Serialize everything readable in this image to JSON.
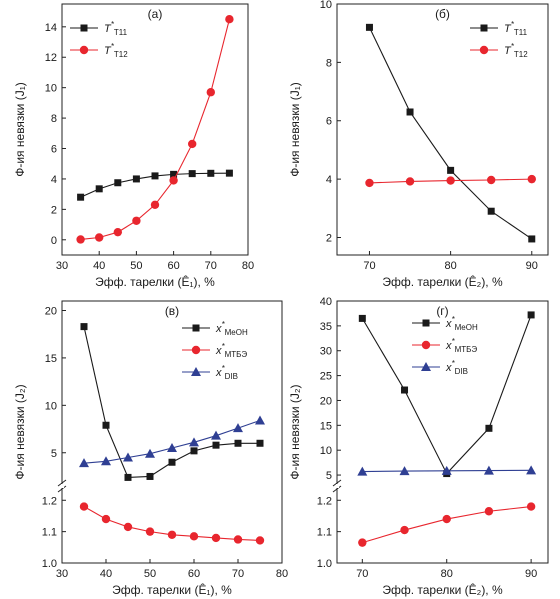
{
  "colors": {
    "black": "#1a1a1a",
    "red": "#e8262e",
    "blue": "#2f3f93"
  },
  "chart_data": [
    {
      "id": "a",
      "panel_label": "(а)",
      "type": "line",
      "xlabel": "Эфф. тарелки (Ê₁), %",
      "ylabel": "Ф-ия невязки (J₁)",
      "xlim": [
        30,
        80
      ],
      "ylim": [
        -1,
        15.5
      ],
      "xticks": [
        30,
        40,
        50,
        60,
        70,
        80
      ],
      "yticks": [
        0,
        2,
        4,
        6,
        8,
        10,
        12,
        14
      ],
      "legend_position": "top-left",
      "series": [
        {
          "name": "T*_T11",
          "legend_main": "T",
          "legend_sup": "*",
          "legend_sub": "T11",
          "color": "#1a1a1a",
          "marker": "square",
          "x": [
            35,
            40,
            45,
            50,
            55,
            60,
            65,
            70,
            75
          ],
          "values": [
            2.8,
            3.35,
            3.75,
            4.0,
            4.2,
            4.3,
            4.35,
            4.37,
            4.38
          ]
        },
        {
          "name": "T*_T12",
          "legend_main": "T",
          "legend_sup": "*",
          "legend_sub": "T12",
          "color": "#e8262e",
          "marker": "circle",
          "x": [
            35,
            40,
            45,
            50,
            55,
            60,
            65,
            70,
            75
          ],
          "values": [
            0.02,
            0.15,
            0.5,
            1.25,
            2.3,
            3.9,
            6.3,
            9.7,
            14.5
          ]
        }
      ]
    },
    {
      "id": "b",
      "panel_label": "(б)",
      "type": "line",
      "xlabel": "Эфф. тарелки (Ê₂), %",
      "ylabel": "Ф-ия невязки (J₁)",
      "xlim": [
        66,
        92
      ],
      "ylim": [
        1.4,
        10
      ],
      "xticks": [
        70,
        80,
        90
      ],
      "yticks": [
        2,
        4,
        6,
        8,
        10
      ],
      "legend_position": "top-right",
      "series": [
        {
          "name": "T*_T11",
          "legend_main": "T",
          "legend_sup": "*",
          "legend_sub": "T11",
          "color": "#1a1a1a",
          "marker": "square",
          "x": [
            70,
            75,
            80,
            85,
            90
          ],
          "values": [
            9.2,
            6.3,
            4.3,
            2.9,
            1.95
          ]
        },
        {
          "name": "T*_T12",
          "legend_main": "T",
          "legend_sup": "*",
          "legend_sub": "T12",
          "color": "#e8262e",
          "marker": "circle",
          "x": [
            70,
            75,
            80,
            85,
            90
          ],
          "values": [
            3.87,
            3.92,
            3.95,
            3.97,
            4.0
          ]
        }
      ]
    },
    {
      "id": "c",
      "panel_label": "(в)",
      "type": "line",
      "broken_y_axis": true,
      "xlabel": "Эфф. тарелки (Ê₁), %",
      "ylabel": "Ф-ия невязки (J₂)",
      "xlim": [
        30,
        80
      ],
      "ylim_lower": [
        1.0,
        1.22
      ],
      "ylim_upper": [
        1.6,
        21
      ],
      "xticks": [
        30,
        40,
        50,
        60,
        70,
        80
      ],
      "yticks_lower": [
        1.0,
        1.1,
        1.2
      ],
      "yticks_upper": [
        5,
        10,
        15,
        20
      ],
      "legend_position": "top-right",
      "series": [
        {
          "name": "x*_MeOH",
          "legend_main": "x",
          "legend_sup": "*",
          "legend_sub": "MeOH",
          "color": "#1a1a1a",
          "marker": "square",
          "x": [
            35,
            40,
            45,
            50,
            55,
            60,
            65,
            70,
            75
          ],
          "values": [
            18.3,
            7.9,
            2.4,
            2.5,
            4.0,
            5.2,
            5.8,
            6.0,
            6.0
          ]
        },
        {
          "name": "x*_MTBE",
          "legend_main": "x",
          "legend_sup": "*",
          "legend_sub": "MTБЭ",
          "color": "#e8262e",
          "marker": "circle",
          "x": [
            35,
            40,
            45,
            50,
            55,
            60,
            65,
            70,
            75
          ],
          "values": [
            1.18,
            1.14,
            1.115,
            1.1,
            1.09,
            1.085,
            1.08,
            1.075,
            1.072
          ]
        },
        {
          "name": "x*_DIB",
          "legend_main": "x",
          "legend_sup": "*",
          "legend_sub": "DIB",
          "color": "#2f3f93",
          "marker": "triangle",
          "x": [
            35,
            40,
            45,
            50,
            55,
            60,
            65,
            70,
            75
          ],
          "values": [
            3.9,
            4.1,
            4.5,
            4.9,
            5.5,
            6.1,
            6.8,
            7.6,
            8.4
          ]
        }
      ]
    },
    {
      "id": "d",
      "panel_label": "(г)",
      "type": "line",
      "broken_y_axis": true,
      "xlabel": "Эфф. тарелки (Ê₂), %",
      "ylabel": "Ф-ия невязки (J₂)",
      "xlim": [
        67,
        92
      ],
      "ylim_lower": [
        1.0,
        1.22
      ],
      "ylim_upper": [
        3,
        40
      ],
      "xticks": [
        70,
        80,
        90
      ],
      "yticks_lower": [
        1.0,
        1.1,
        1.2
      ],
      "yticks_upper": [
        5,
        10,
        15,
        20,
        25,
        30,
        35,
        40
      ],
      "legend_position": "top-center",
      "series": [
        {
          "name": "x*_MeOH",
          "legend_main": "x",
          "legend_sup": "*",
          "legend_sub": "MeOH",
          "color": "#1a1a1a",
          "marker": "square",
          "x": [
            70,
            75,
            80,
            85,
            90
          ],
          "values": [
            36.5,
            22.1,
            5.3,
            14.4,
            37.2
          ]
        },
        {
          "name": "x*_MTBE",
          "legend_main": "x",
          "legend_sup": "*",
          "legend_sub": "MTБЭ",
          "color": "#e8262e",
          "marker": "circle",
          "x": [
            70,
            75,
            80,
            85,
            90
          ],
          "values": [
            1.065,
            1.105,
            1.14,
            1.165,
            1.18
          ]
        },
        {
          "name": "x*_DIB",
          "legend_main": "x",
          "legend_sup": "*",
          "legend_sub": "DIB",
          "color": "#2f3f93",
          "marker": "triangle",
          "x": [
            70,
            75,
            80,
            85,
            90
          ],
          "values": [
            5.7,
            5.8,
            5.85,
            5.9,
            5.95
          ]
        }
      ]
    }
  ]
}
